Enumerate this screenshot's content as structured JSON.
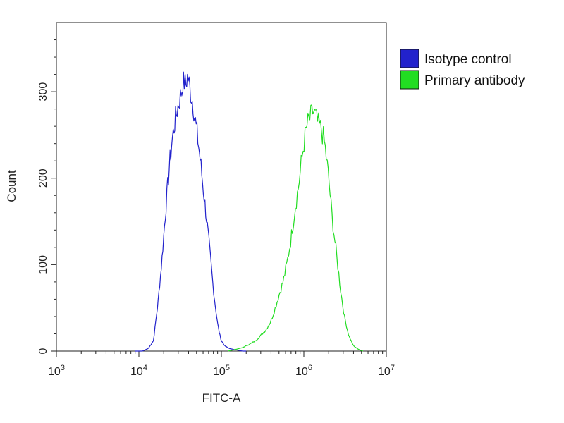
{
  "chart_data": {
    "type": "line",
    "title": "",
    "xlabel": "FITC-A",
    "ylabel": "Count",
    "xscale": "log",
    "xlim": [
      1000,
      10000000
    ],
    "ylim": [
      0,
      380
    ],
    "grid": false,
    "legend_position": "top-right-outside",
    "x_ticks": [
      {
        "base": "10",
        "exp": "3",
        "value": 1000
      },
      {
        "base": "10",
        "exp": "4",
        "value": 10000
      },
      {
        "base": "10",
        "exp": "5",
        "value": 100000
      },
      {
        "base": "10",
        "exp": "6",
        "value": 1000000
      },
      {
        "base": "10",
        "exp": "7",
        "value": 10000000
      }
    ],
    "y_ticks": [
      {
        "label": "0",
        "value": 0
      },
      {
        "label": "100",
        "value": 100
      },
      {
        "label": "200",
        "value": 200
      },
      {
        "label": "300",
        "value": 300
      }
    ],
    "series": [
      {
        "name": "Isotype control",
        "color": "#2222cc",
        "x": [
          9000,
          11000,
          13000,
          15000,
          17000,
          19000,
          21000,
          23000,
          25000,
          27000,
          29000,
          31000,
          33000,
          35000,
          37000,
          39000,
          40000,
          42000,
          45000,
          48000,
          51000,
          55000,
          60000,
          65000,
          70000,
          75000,
          80000,
          85000,
          90000,
          95000,
          100000,
          110000,
          125000,
          140000,
          160000,
          180000,
          200000
        ],
        "y": [
          0,
          0,
          3,
          12,
          55,
          105,
          160,
          205,
          240,
          262,
          278,
          290,
          302,
          312,
          308,
          318,
          314,
          300,
          288,
          268,
          250,
          225,
          190,
          160,
          130,
          100,
          72,
          50,
          32,
          20,
          12,
          6,
          3,
          2,
          1,
          0,
          0
        ]
      },
      {
        "name": "Primary antibody",
        "color": "#22dd22",
        "x": [
          120000,
          150000,
          180000,
          220000,
          260000,
          300000,
          350000,
          400000,
          450000,
          500000,
          560000,
          620000,
          700000,
          780000,
          860000,
          940000,
          1000000,
          1100000,
          1200000,
          1300000,
          1400000,
          1500000,
          1650000,
          1800000,
          2000000,
          2200000,
          2500000,
          2800000,
          3100000,
          3500000,
          4000000,
          4600000,
          5200000
        ],
        "y": [
          0,
          2,
          4,
          8,
          12,
          18,
          25,
          35,
          50,
          65,
          80,
          100,
          130,
          165,
          190,
          220,
          240,
          262,
          270,
          278,
          270,
          262,
          255,
          238,
          200,
          155,
          110,
          70,
          40,
          18,
          6,
          2,
          0
        ]
      }
    ]
  }
}
